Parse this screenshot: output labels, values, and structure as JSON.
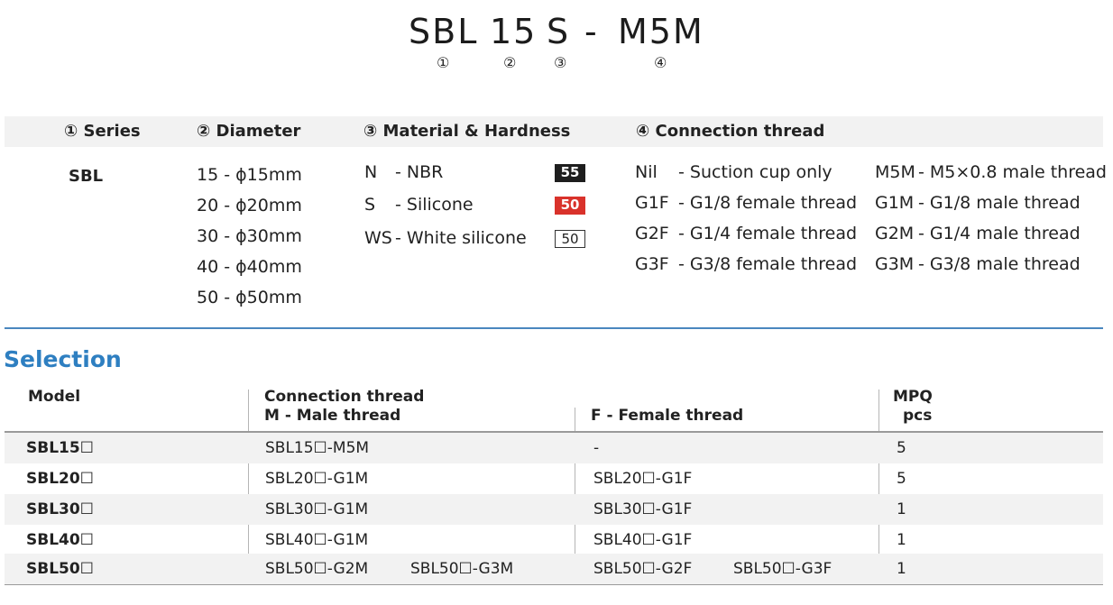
{
  "part_number": {
    "segments": [
      "SBL",
      "15",
      "S",
      "-",
      "M5M"
    ],
    "markers": [
      "①",
      "②",
      "③",
      "④"
    ]
  },
  "code_table": {
    "headers": {
      "series": "① Series",
      "diameter": "② Diameter",
      "material": "③ Material & Hardness",
      "thread": "④ Connection thread"
    },
    "series": "SBL",
    "diameters": [
      "15 - ϕ15mm",
      "20 - ϕ20mm",
      "30 - ϕ30mm",
      "40 - ϕ40mm",
      "50 - ϕ50mm"
    ],
    "materials": [
      {
        "code": "N",
        "name": "- NBR",
        "hardness": "55",
        "badge_color": "#1e1e1e"
      },
      {
        "code": "S",
        "name": "- Silicone",
        "hardness": "50",
        "badge_color": "#d9322b"
      },
      {
        "code": "WS",
        "name": "- White silicone",
        "hardness": "50",
        "badge_color": "#ffffff"
      }
    ],
    "threads_left": [
      {
        "code": "Nil",
        "desc": "- Suction cup only"
      },
      {
        "code": "G1F",
        "desc": "- G1/8 female thread"
      },
      {
        "code": "G2F",
        "desc": "- G1/4 female thread"
      },
      {
        "code": "G3F",
        "desc": "- G3/8 female thread"
      }
    ],
    "threads_right": [
      {
        "code": "M5M",
        "desc": "- M5×0.8 male thread"
      },
      {
        "code": "G1M",
        "desc": "- G1/8 male thread"
      },
      {
        "code": "G2M",
        "desc": "- G1/4 male thread"
      },
      {
        "code": "G3M",
        "desc": "- G3/8 male thread"
      }
    ]
  },
  "selection": {
    "title": "Selection",
    "headers": {
      "model": "Model",
      "connection": "Connection thread",
      "male": "M - Male thread",
      "female": "F - Female thread",
      "mpq": "MPQ",
      "mpq_unit": "pcs"
    },
    "rows": [
      {
        "model": "SBL15☐",
        "male1": "SBL15☐-M5M",
        "male2": "",
        "female1": "-",
        "female2": "",
        "mpq": "5"
      },
      {
        "model": "SBL20☐",
        "male1": "SBL20☐-G1M",
        "male2": "",
        "female1": "SBL20☐-G1F",
        "female2": "",
        "mpq": "5"
      },
      {
        "model": "SBL30☐",
        "male1": "SBL30☐-G1M",
        "male2": "",
        "female1": "SBL30☐-G1F",
        "female2": "",
        "mpq": "1"
      },
      {
        "model": "SBL40☐",
        "male1": "SBL40☐-G1M",
        "male2": "",
        "female1": "SBL40☐-G1F",
        "female2": "",
        "mpq": "1"
      },
      {
        "model": "SBL50☐",
        "male1": "SBL50☐-G2M",
        "male2": "SBL50☐-G3M",
        "female1": "SBL50☐-G2F",
        "female2": "SBL50☐-G3F",
        "mpq": "1"
      }
    ]
  },
  "colors": {
    "accent_blue": "#2e7fc1",
    "rule_blue": "#4a87bf",
    "header_bg": "#f2f2f2"
  }
}
